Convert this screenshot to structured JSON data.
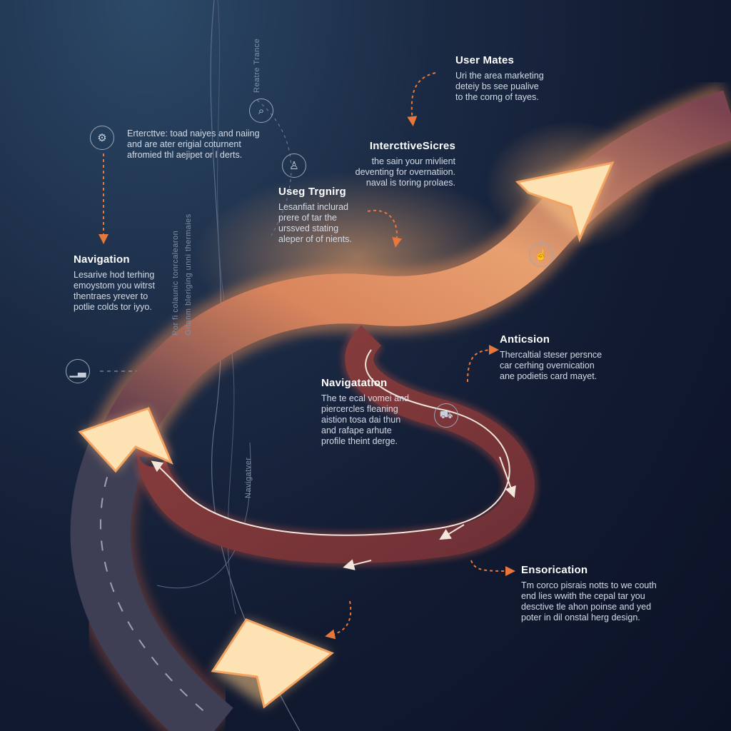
{
  "blocks": {
    "user_mates": {
      "title": "User Mates",
      "lines": [
        "Uri the area marketing",
        "deteiy bs see pualive",
        "to the corng of tayes."
      ]
    },
    "interactive_sicres": {
      "title": "IntercttiveSicres",
      "lines": [
        "the sain your mivlient",
        "deventing for overnatiion.",
        "naval is toring prolaes."
      ]
    },
    "useg_trgning": {
      "title": "Useg Trgnirg",
      "lines": [
        "Lesanfiat inclurad",
        "prere of tar the",
        "urssved stating",
        "aleper of of nients."
      ]
    },
    "top_left": {
      "lines": [
        "Ertercttve: toad naiyes and naiing",
        "and are ater erigial coturnent",
        "afromied thl aejipet or l derts."
      ]
    },
    "navigation_left": {
      "title": "Navigation",
      "lines": [
        "Lesarive hod terhing",
        "emoystom you witrst",
        "thentraes yrever to",
        "potlie colds tor iyyo."
      ]
    },
    "anticsion": {
      "title": "Anticsion",
      "lines": [
        "Thercaltial steser persnce",
        "car cerhing overnication",
        "ane podietis card mayet."
      ]
    },
    "navigation_center": {
      "title": "Navigatation",
      "lines": [
        "The te ecal vomei and",
        "piercercles fleaning",
        "aistion tosa dai thun",
        "and rafape arhute",
        "profile theint derge."
      ]
    },
    "ensorication": {
      "title": "Ensorication",
      "lines": [
        "Tm corco pisrais notts to we couth",
        "end lies wwith the cepal tar you",
        "desctive tle ahon poinse and yed",
        "poter in dil onstal herg design."
      ]
    }
  },
  "vertical_labels": {
    "top": "Reatre Trance",
    "mid1": "Por fi colaunic tonrcalearon",
    "mid2": "Gitanm bleriging unni thermaies",
    "bottom": "Navigatver"
  },
  "icons": {
    "top_left": "gear-badge-icon",
    "mid": "search-chart-icon",
    "person": "person-icon",
    "left": "trend-chart-icon",
    "right": "hand-pointer-icon",
    "vehicle": "vehicle-icon"
  },
  "colors": {
    "background": "#111a30",
    "road_glow": "#f39a62",
    "road_body": "#a4504a",
    "arrow_fill": "#fde3b3",
    "accent": "#e8773b"
  }
}
